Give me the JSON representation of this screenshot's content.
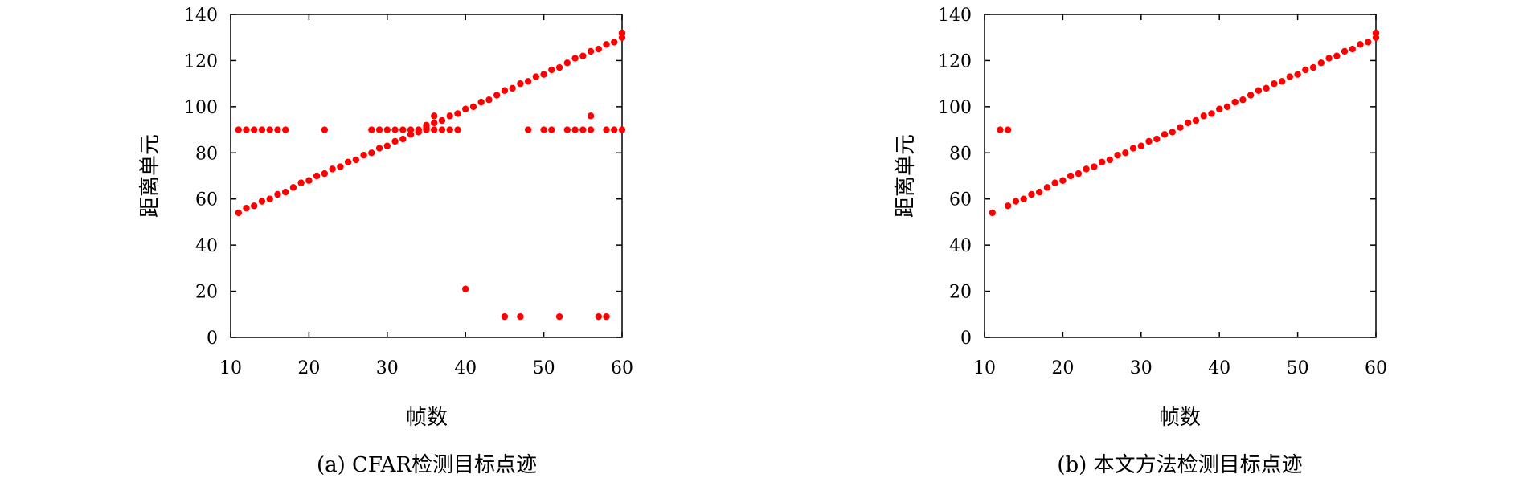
{
  "charts": [
    {
      "caption": "(a) CFAR检测目标点迹",
      "chart_data": {
        "type": "scatter",
        "xlabel": "帧数",
        "ylabel": "距离单元",
        "xlim": [
          10,
          60
        ],
        "ylim": [
          0,
          140
        ],
        "xticks": [
          10,
          20,
          30,
          40,
          50,
          60
        ],
        "yticks": [
          0,
          20,
          40,
          60,
          80,
          100,
          120,
          140
        ],
        "grid": false,
        "color": "#ff0000",
        "points": [
          [
            11,
            54
          ],
          [
            12,
            56
          ],
          [
            13,
            57
          ],
          [
            14,
            59
          ],
          [
            15,
            60
          ],
          [
            16,
            62
          ],
          [
            17,
            63
          ],
          [
            18,
            65
          ],
          [
            19,
            67
          ],
          [
            20,
            68
          ],
          [
            21,
            70
          ],
          [
            22,
            71
          ],
          [
            23,
            73
          ],
          [
            24,
            74
          ],
          [
            25,
            76
          ],
          [
            26,
            77
          ],
          [
            27,
            79
          ],
          [
            28,
            80
          ],
          [
            29,
            82
          ],
          [
            30,
            83
          ],
          [
            31,
            85
          ],
          [
            32,
            86
          ],
          [
            33,
            88
          ],
          [
            34,
            89
          ],
          [
            35,
            91
          ],
          [
            36,
            93
          ],
          [
            37,
            94
          ],
          [
            38,
            96
          ],
          [
            39,
            97
          ],
          [
            40,
            99
          ],
          [
            41,
            100
          ],
          [
            42,
            102
          ],
          [
            43,
            103
          ],
          [
            44,
            105
          ],
          [
            45,
            107
          ],
          [
            46,
            108
          ],
          [
            47,
            110
          ],
          [
            48,
            111
          ],
          [
            49,
            113
          ],
          [
            50,
            114
          ],
          [
            51,
            116
          ],
          [
            52,
            117
          ],
          [
            53,
            119
          ],
          [
            54,
            121
          ],
          [
            55,
            122
          ],
          [
            56,
            124
          ],
          [
            57,
            125
          ],
          [
            58,
            127
          ],
          [
            59,
            128
          ],
          [
            60,
            130
          ],
          [
            61,
            132
          ],
          [
            11,
            90
          ],
          [
            12,
            90
          ],
          [
            13,
            90
          ],
          [
            14,
            90
          ],
          [
            15,
            90
          ],
          [
            16,
            90
          ],
          [
            17,
            90
          ],
          [
            22,
            90
          ],
          [
            28,
            90
          ],
          [
            29,
            90
          ],
          [
            30,
            90
          ],
          [
            31,
            90
          ],
          [
            32,
            90
          ],
          [
            33,
            90
          ],
          [
            34,
            90
          ],
          [
            35,
            90
          ],
          [
            36,
            90
          ],
          [
            37,
            90
          ],
          [
            38,
            90
          ],
          [
            39,
            90
          ],
          [
            35,
            92
          ],
          [
            36,
            96
          ],
          [
            48,
            90
          ],
          [
            50,
            90
          ],
          [
            51,
            90
          ],
          [
            53,
            90
          ],
          [
            54,
            90
          ],
          [
            55,
            90
          ],
          [
            56,
            90
          ],
          [
            56,
            96
          ],
          [
            58,
            90
          ],
          [
            59,
            90
          ],
          [
            60,
            90
          ],
          [
            40,
            21
          ],
          [
            45,
            9
          ],
          [
            47,
            9
          ],
          [
            52,
            9
          ],
          [
            57,
            9
          ],
          [
            58,
            9
          ]
        ]
      }
    },
    {
      "caption": "(b) 本文方法检测目标点迹",
      "chart_data": {
        "type": "scatter",
        "xlabel": "帧数",
        "ylabel": "距离单元",
        "xlim": [
          10,
          60
        ],
        "ylim": [
          0,
          140
        ],
        "xticks": [
          10,
          20,
          30,
          40,
          50,
          60
        ],
        "yticks": [
          0,
          20,
          40,
          60,
          80,
          100,
          120,
          140
        ],
        "grid": false,
        "color": "#ff0000",
        "points": [
          [
            11,
            54
          ],
          [
            12,
            90
          ],
          [
            13,
            90
          ],
          [
            13,
            57
          ],
          [
            14,
            59
          ],
          [
            15,
            60
          ],
          [
            16,
            62
          ],
          [
            17,
            63
          ],
          [
            18,
            65
          ],
          [
            19,
            67
          ],
          [
            20,
            68
          ],
          [
            21,
            70
          ],
          [
            22,
            71
          ],
          [
            23,
            73
          ],
          [
            24,
            74
          ],
          [
            25,
            76
          ],
          [
            26,
            77
          ],
          [
            27,
            79
          ],
          [
            28,
            80
          ],
          [
            29,
            82
          ],
          [
            30,
            83
          ],
          [
            31,
            85
          ],
          [
            32,
            86
          ],
          [
            33,
            88
          ],
          [
            34,
            89
          ],
          [
            35,
            91
          ],
          [
            36,
            93
          ],
          [
            37,
            94
          ],
          [
            38,
            96
          ],
          [
            39,
            97
          ],
          [
            40,
            99
          ],
          [
            41,
            100
          ],
          [
            42,
            102
          ],
          [
            43,
            103
          ],
          [
            44,
            105
          ],
          [
            45,
            107
          ],
          [
            46,
            108
          ],
          [
            47,
            110
          ],
          [
            48,
            111
          ],
          [
            49,
            113
          ],
          [
            50,
            114
          ],
          [
            51,
            116
          ],
          [
            52,
            117
          ],
          [
            53,
            119
          ],
          [
            54,
            121
          ],
          [
            55,
            122
          ],
          [
            56,
            124
          ],
          [
            57,
            125
          ],
          [
            58,
            127
          ],
          [
            59,
            128
          ],
          [
            60,
            130
          ],
          [
            61,
            132
          ]
        ]
      }
    }
  ]
}
